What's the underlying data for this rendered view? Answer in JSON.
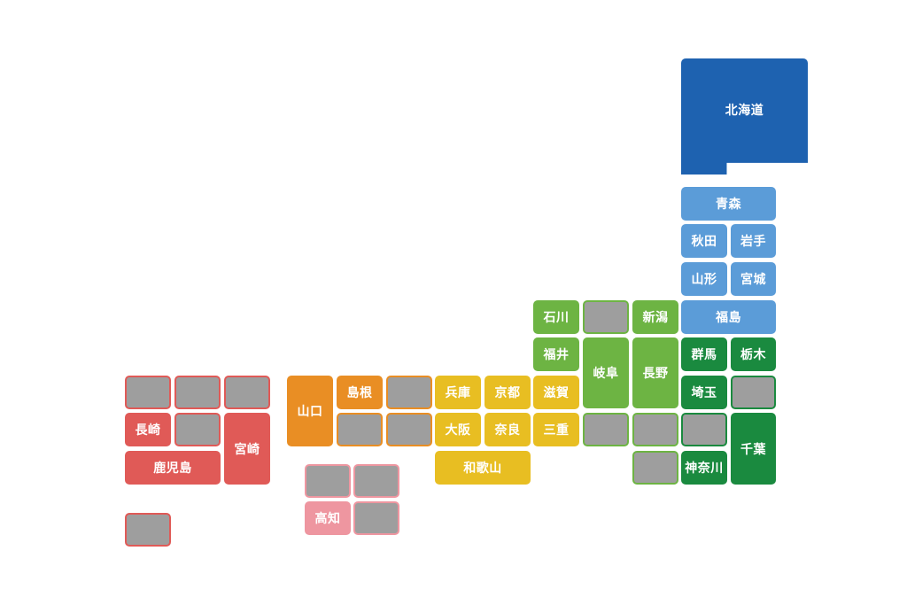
{
  "colors": {
    "hokkaido": "#1e62b0",
    "tohoku": "#5b9cd8",
    "kanto": "#1a8a3f",
    "chubu": "#6db443",
    "kinki": "#e8be22",
    "chugoku": "#e98e24",
    "shikoku": "#ee96a0",
    "kyushu": "#e05a57",
    "gray": "#9e9e9e"
  },
  "prefectures": [
    {
      "label": "北海道",
      "region": "hokkaido"
    },
    {
      "label": "青森",
      "region": "tohoku"
    },
    {
      "label": "秋田",
      "region": "tohoku"
    },
    {
      "label": "岩手",
      "region": "tohoku"
    },
    {
      "label": "山形",
      "region": "tohoku"
    },
    {
      "label": "宮城",
      "region": "tohoku"
    },
    {
      "label": "福島",
      "region": "tohoku"
    },
    {
      "label": "石川",
      "region": "chubu"
    },
    {
      "label": "",
      "region": "chubu",
      "grayed": true
    },
    {
      "label": "新潟",
      "region": "chubu"
    },
    {
      "label": "福井",
      "region": "chubu"
    },
    {
      "label": "岐阜",
      "region": "chubu"
    },
    {
      "label": "長野",
      "region": "chubu"
    },
    {
      "label": "",
      "region": "chubu",
      "grayed": true
    },
    {
      "label": "",
      "region": "chubu",
      "grayed": true
    },
    {
      "label": "",
      "region": "chubu",
      "grayed": true
    },
    {
      "label": "群馬",
      "region": "kanto"
    },
    {
      "label": "栃木",
      "region": "kanto"
    },
    {
      "label": "埼玉",
      "region": "kanto"
    },
    {
      "label": "",
      "region": "kanto",
      "grayed": true
    },
    {
      "label": "",
      "region": "kanto",
      "grayed": true
    },
    {
      "label": "千葉",
      "region": "kanto"
    },
    {
      "label": "神奈川",
      "region": "kanto"
    },
    {
      "label": "兵庫",
      "region": "kinki"
    },
    {
      "label": "京都",
      "region": "kinki"
    },
    {
      "label": "滋賀",
      "region": "kinki"
    },
    {
      "label": "大阪",
      "region": "kinki"
    },
    {
      "label": "奈良",
      "region": "kinki"
    },
    {
      "label": "三重",
      "region": "kinki"
    },
    {
      "label": "和歌山",
      "region": "kinki"
    },
    {
      "label": "山口",
      "region": "chugoku"
    },
    {
      "label": "島根",
      "region": "chugoku"
    },
    {
      "label": "",
      "region": "chugoku",
      "grayed": true
    },
    {
      "label": "",
      "region": "chugoku",
      "grayed": true
    },
    {
      "label": "",
      "region": "chugoku",
      "grayed": true
    },
    {
      "label": "",
      "region": "shikoku",
      "grayed": true
    },
    {
      "label": "",
      "region": "shikoku",
      "grayed": true
    },
    {
      "label": "高知",
      "region": "shikoku"
    },
    {
      "label": "",
      "region": "shikoku",
      "grayed": true
    },
    {
      "label": "",
      "region": "kyushu",
      "grayed": true
    },
    {
      "label": "",
      "region": "kyushu",
      "grayed": true
    },
    {
      "label": "",
      "region": "kyushu",
      "grayed": true
    },
    {
      "label": "長崎",
      "region": "kyushu"
    },
    {
      "label": "",
      "region": "kyushu",
      "grayed": true
    },
    {
      "label": "宮崎",
      "region": "kyushu"
    },
    {
      "label": "鹿児島",
      "region": "kyushu"
    },
    {
      "label": "",
      "region": "kyushu",
      "grayed": true
    }
  ]
}
